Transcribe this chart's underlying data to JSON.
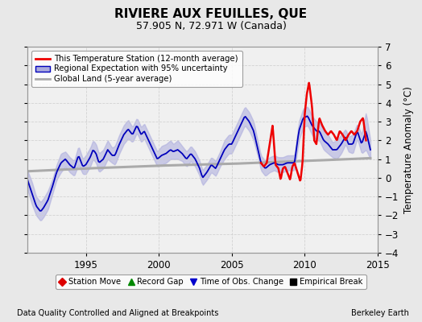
{
  "title": "RIVIERE AUX FEUILLES, QUE",
  "subtitle": "57.905 N, 72.971 W (Canada)",
  "ylabel": "Temperature Anomaly (°C)",
  "footnote_left": "Data Quality Controlled and Aligned at Breakpoints",
  "footnote_right": "Berkeley Earth",
  "xlim": [
    1991.0,
    2015.0
  ],
  "ylim": [
    -4,
    7
  ],
  "yticks_right": [
    -4,
    -3,
    -2,
    -1,
    0,
    1,
    2,
    3,
    4,
    5,
    6,
    7
  ],
  "xticks": [
    1995,
    2000,
    2005,
    2010,
    2015
  ],
  "bg_color": "#e8e8e8",
  "plot_bg_color": "#f0f0f0",
  "grid_color": "#cccccc",
  "red_color": "#ee0000",
  "blue_color": "#0000bb",
  "gray_color": "#aaaaaa",
  "shade_color": "#aaaadd",
  "legend_items": [
    {
      "label": "This Temperature Station (12-month average)",
      "color": "#ee0000",
      "lw": 2
    },
    {
      "label": "Regional Expectation with 95% uncertainty",
      "color": "#0000bb",
      "lw": 1.5
    },
    {
      "label": "Global Land (5-year average)",
      "color": "#aaaaaa",
      "lw": 2
    }
  ],
  "bottom_legend": [
    {
      "label": "Station Move",
      "marker": "D",
      "color": "#dd0000"
    },
    {
      "label": "Record Gap",
      "marker": "^",
      "color": "#008800"
    },
    {
      "label": "Time of Obs. Change",
      "marker": "v",
      "color": "#0000cc"
    },
    {
      "label": "Empirical Break",
      "marker": "s",
      "color": "#000000"
    }
  ],
  "blue_t": [
    1991.0,
    1991.3,
    1991.6,
    1991.9,
    1992.1,
    1992.4,
    1992.7,
    1993.0,
    1993.3,
    1993.6,
    1993.9,
    1994.2,
    1994.5,
    1994.8,
    1995.0,
    1995.3,
    1995.5,
    1995.7,
    1995.9,
    1996.2,
    1996.5,
    1996.8,
    1997.0,
    1997.3,
    1997.6,
    1997.9,
    1998.2,
    1998.5,
    1998.8,
    1999.0,
    1999.3,
    1999.6,
    1999.9,
    2000.2,
    2000.5,
    2000.8,
    2001.0,
    2001.3,
    2001.6,
    2001.9,
    2002.2,
    2002.5,
    2002.8,
    2003.0,
    2003.3,
    2003.6,
    2003.9,
    2004.2,
    2004.5,
    2004.8,
    2005.0,
    2005.3,
    2005.6,
    2005.9,
    2006.2,
    2006.5,
    2006.8,
    2007.0,
    2007.3,
    2007.6,
    2007.9,
    2008.2,
    2008.5,
    2008.8,
    2009.0,
    2009.3,
    2009.6,
    2009.9,
    2010.2,
    2010.5,
    2010.8,
    2011.0,
    2011.3,
    2011.6,
    2011.9,
    2012.2,
    2012.5,
    2012.8,
    2013.0,
    2013.3,
    2013.6,
    2013.9,
    2014.2,
    2014.5
  ],
  "blue_v": [
    -0.1,
    -0.8,
    -1.5,
    -1.8,
    -1.6,
    -1.2,
    -0.5,
    0.3,
    0.8,
    1.0,
    0.7,
    0.5,
    1.2,
    0.6,
    0.7,
    1.1,
    1.5,
    1.3,
    0.8,
    1.0,
    1.5,
    1.2,
    1.2,
    1.8,
    2.3,
    2.6,
    2.3,
    2.8,
    2.3,
    2.5,
    2.0,
    1.5,
    1.0,
    1.2,
    1.3,
    1.5,
    1.4,
    1.5,
    1.3,
    1.0,
    1.3,
    1.0,
    0.5,
    0.0,
    0.3,
    0.7,
    0.5,
    1.0,
    1.5,
    1.8,
    1.8,
    2.3,
    2.8,
    3.3,
    3.0,
    2.5,
    1.5,
    0.8,
    0.5,
    0.7,
    0.8,
    0.7,
    0.7,
    0.8,
    0.8,
    0.8,
    2.5,
    3.2,
    3.3,
    2.8,
    2.5,
    2.5,
    2.0,
    1.8,
    1.5,
    1.5,
    1.8,
    2.2,
    1.8,
    1.8,
    2.5,
    1.8,
    2.5,
    1.5
  ],
  "blue_band_lower": [
    -0.6,
    -1.4,
    -2.0,
    -2.3,
    -2.1,
    -1.7,
    -0.9,
    -0.1,
    0.3,
    0.6,
    0.3,
    0.1,
    0.7,
    0.2,
    0.2,
    0.6,
    1.0,
    0.8,
    0.3,
    0.5,
    1.0,
    0.8,
    0.7,
    1.3,
    1.8,
    2.1,
    1.9,
    2.4,
    1.9,
    2.1,
    1.6,
    1.1,
    0.6,
    0.7,
    0.8,
    1.0,
    1.0,
    1.0,
    0.9,
    0.6,
    0.9,
    0.6,
    0.1,
    -0.4,
    -0.1,
    0.3,
    0.1,
    0.6,
    1.0,
    1.3,
    1.3,
    1.8,
    2.3,
    2.8,
    2.5,
    2.0,
    1.1,
    0.4,
    0.1,
    0.3,
    0.4,
    0.3,
    0.3,
    0.4,
    0.4,
    0.4,
    2.0,
    2.7,
    2.8,
    2.3,
    2.0,
    2.0,
    1.5,
    1.3,
    1.1,
    1.0,
    1.3,
    1.8,
    1.4,
    1.3,
    2.1,
    1.3,
    1.5,
    1.0
  ],
  "blue_band_upper": [
    0.4,
    -0.2,
    -1.0,
    -1.3,
    -1.1,
    -0.7,
    -0.1,
    0.7,
    1.3,
    1.4,
    1.1,
    0.9,
    1.7,
    1.0,
    1.2,
    1.6,
    2.0,
    1.8,
    1.3,
    1.5,
    2.0,
    1.6,
    1.7,
    2.3,
    2.8,
    3.1,
    2.7,
    3.2,
    2.7,
    2.9,
    2.4,
    1.9,
    1.4,
    1.7,
    1.8,
    2.0,
    1.8,
    2.0,
    1.7,
    1.4,
    1.7,
    1.4,
    0.9,
    0.4,
    0.7,
    1.1,
    0.9,
    1.4,
    2.0,
    2.3,
    2.3,
    2.8,
    3.3,
    3.8,
    3.5,
    3.0,
    1.9,
    1.2,
    0.9,
    1.1,
    1.2,
    1.1,
    1.1,
    1.2,
    1.2,
    1.2,
    3.0,
    3.7,
    3.8,
    3.3,
    3.0,
    3.0,
    2.5,
    2.3,
    1.9,
    2.0,
    2.3,
    2.6,
    2.2,
    2.3,
    2.9,
    2.3,
    3.5,
    2.0
  ],
  "red_t": [
    2007.0,
    2007.2,
    2007.4,
    2007.6,
    2007.8,
    2008.0,
    2008.2,
    2008.35,
    2008.5,
    2008.65,
    2008.8,
    2009.0,
    2009.15,
    2009.3,
    2009.5,
    2009.7,
    2009.85,
    2010.0,
    2010.15,
    2010.3,
    2010.5,
    2010.65,
    2010.8,
    2011.0,
    2011.2,
    2011.4,
    2011.6,
    2011.8,
    2012.0,
    2012.2,
    2012.4,
    2012.6,
    2012.8,
    2013.0,
    2013.2,
    2013.4,
    2013.6,
    2013.8,
    2014.0,
    2014.2
  ],
  "red_v": [
    0.8,
    0.6,
    0.8,
    1.8,
    2.8,
    0.7,
    0.5,
    -0.1,
    0.5,
    0.6,
    0.3,
    -0.1,
    0.6,
    0.8,
    0.3,
    -0.2,
    0.8,
    3.4,
    4.5,
    5.1,
    3.8,
    2.0,
    1.8,
    3.2,
    2.8,
    2.5,
    2.3,
    2.5,
    2.3,
    2.0,
    2.5,
    2.3,
    2.0,
    2.3,
    2.5,
    2.3,
    2.5,
    3.0,
    3.2,
    2.0
  ],
  "gray_t": [
    1991.0,
    1995.0,
    2000.0,
    2005.0,
    2010.0,
    2014.5
  ],
  "gray_v": [
    0.35,
    0.5,
    0.65,
    0.75,
    0.9,
    1.05
  ]
}
